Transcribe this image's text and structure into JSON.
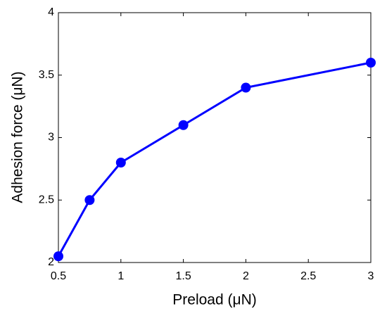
{
  "chart_data": {
    "type": "line",
    "xlabel": "Preload (μN)",
    "ylabel": "Adhesion force (μN)",
    "x": [
      0.5,
      0.75,
      1,
      1.5,
      2,
      3
    ],
    "series": [
      {
        "color": "#0000ff",
        "values": [
          2.05,
          2.5,
          2.8,
          3.1,
          3.4,
          3.6
        ]
      }
    ],
    "xlim": [
      0.5,
      3
    ],
    "ylim": [
      2,
      4
    ],
    "xticks": [
      0.5,
      1,
      1.5,
      2,
      2.5,
      3
    ],
    "yticks": [
      2,
      2.5,
      3,
      3.5,
      4
    ],
    "grid": false
  }
}
